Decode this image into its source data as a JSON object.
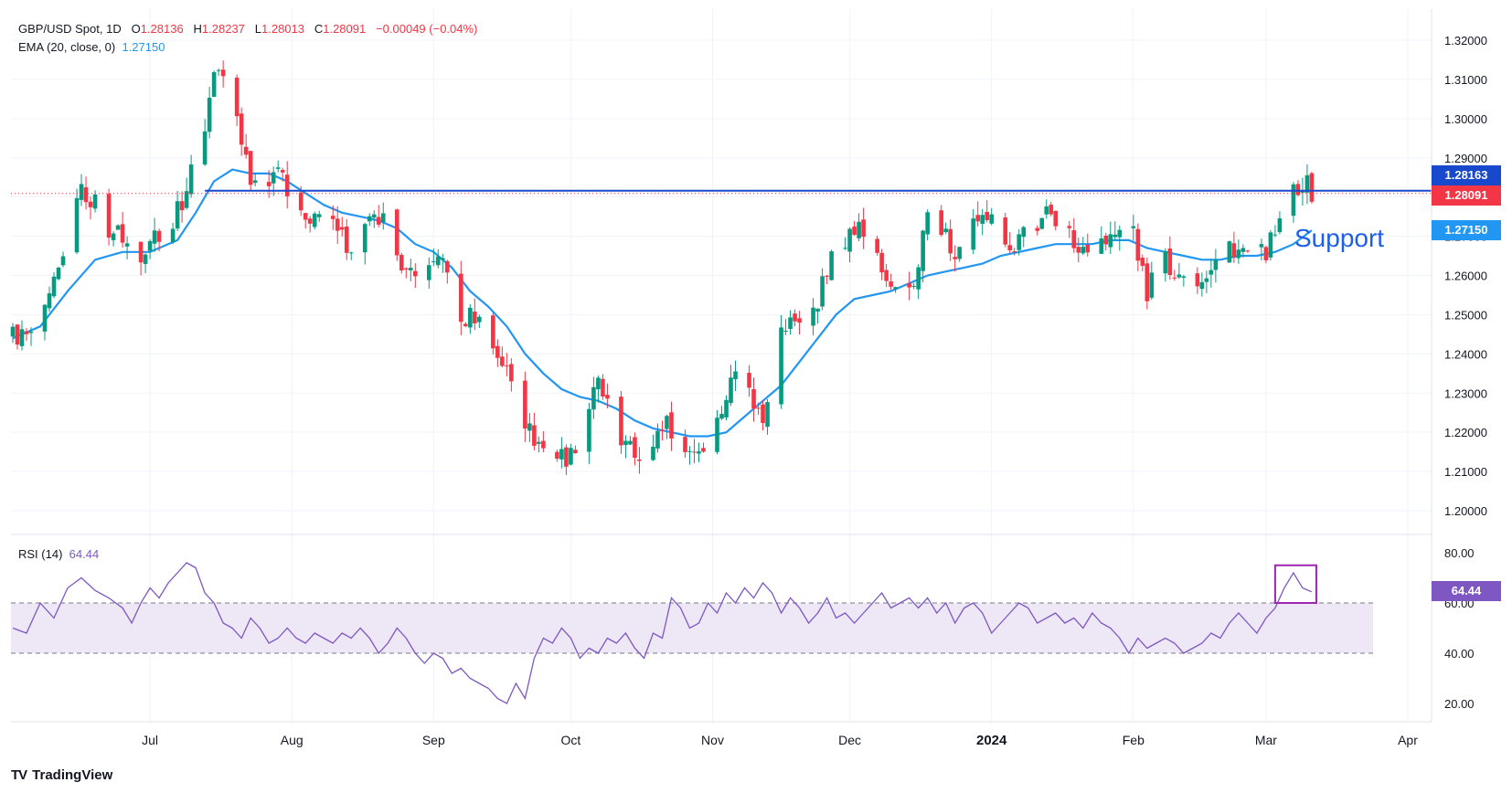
{
  "legend": {
    "symbol": "GBP/USD Spot, 1D",
    "open_label": "O",
    "open": "1.28136",
    "high_label": "H",
    "high": "1.28237",
    "low_label": "L",
    "low": "1.28013",
    "close_label": "C",
    "close": "1.28091",
    "change": "−0.00049 (−0.04%)",
    "ema_label": "EMA (20, close, 0)",
    "ema_value": "1.27150",
    "rsi_label": "RSI (14)",
    "rsi_value": "64.44"
  },
  "price_tags": {
    "resistance": "1.28163",
    "last": "1.28091",
    "ema": "1.27150",
    "rsi": "64.44"
  },
  "annotation": "Support",
  "footer": {
    "brand": "TradingView",
    "logo": "TV"
  },
  "colors": {
    "up": "#089981",
    "down": "#f23645",
    "ema": "#2196f3",
    "rsi": "#7e57c2",
    "level": "#1848cc",
    "box": "#9c27b0",
    "rsi_band": "#ede7f6"
  },
  "chart_data": [
    {
      "type": "candlestick",
      "title": "GBP/USD Spot, 1D",
      "ylim": [
        1.195,
        1.325
      ],
      "y_ticks": [
        "1.32000",
        "1.31000",
        "1.30000",
        "1.29000",
        "1.28000",
        "1.27000",
        "1.26000",
        "1.25000",
        "1.24000",
        "1.23000",
        "1.22000",
        "1.21000",
        "1.20000"
      ],
      "y_tick_values": [
        1.32,
        1.31,
        1.3,
        1.29,
        1.28,
        1.27,
        1.26,
        1.25,
        1.24,
        1.23,
        1.22,
        1.21,
        1.2
      ],
      "x_range_days": [
        0,
        296
      ],
      "x_ticks": [
        {
          "label": "Jul",
          "day": 30
        },
        {
          "label": "Aug",
          "day": 61
        },
        {
          "label": "Sep",
          "day": 92
        },
        {
          "label": "Oct",
          "day": 122
        },
        {
          "label": "Nov",
          "day": 153
        },
        {
          "label": "Dec",
          "day": 183
        },
        {
          "label": "2024",
          "day": 214
        },
        {
          "label": "Feb",
          "day": 245
        },
        {
          "label": "Mar",
          "day": 274
        },
        {
          "label": "Apr",
          "day": 305
        }
      ],
      "resistance_level": 1.2816,
      "last_price": 1.28091,
      "ema_last": 1.2715,
      "close_path": [
        [
          0,
          1.245
        ],
        [
          4,
          1.244
        ],
        [
          7,
          1.25
        ],
        [
          11,
          1.264
        ],
        [
          14,
          1.282
        ],
        [
          17,
          1.28
        ],
        [
          21,
          1.272
        ],
        [
          24,
          1.27
        ],
        [
          27,
          1.264
        ],
        [
          30,
          1.27
        ],
        [
          33,
          1.272
        ],
        [
          36,
          1.276
        ],
        [
          39,
          1.286
        ],
        [
          42,
          1.298
        ],
        [
          44,
          1.312
        ],
        [
          46,
          1.31
        ],
        [
          48,
          1.304
        ],
        [
          50,
          1.296
        ],
        [
          52,
          1.286
        ],
        [
          55,
          1.284
        ],
        [
          58,
          1.288
        ],
        [
          60,
          1.28
        ],
        [
          62,
          1.276
        ],
        [
          65,
          1.272
        ],
        [
          68,
          1.276
        ],
        [
          71,
          1.27
        ],
        [
          74,
          1.268
        ],
        [
          77,
          1.272
        ],
        [
          80,
          1.274
        ],
        [
          83,
          1.272
        ],
        [
          86,
          1.26
        ],
        [
          89,
          1.258
        ],
        [
          92,
          1.265
        ],
        [
          95,
          1.26
        ],
        [
          98,
          1.248
        ],
        [
          101,
          1.25
        ],
        [
          104,
          1.244
        ],
        [
          107,
          1.238
        ],
        [
          110,
          1.23
        ],
        [
          113,
          1.22
        ],
        [
          116,
          1.216
        ],
        [
          119,
          1.214
        ],
        [
          122,
          1.214
        ],
        [
          125,
          1.224
        ],
        [
          128,
          1.232
        ],
        [
          131,
          1.224
        ],
        [
          134,
          1.216
        ],
        [
          137,
          1.214
        ],
        [
          140,
          1.216
        ],
        [
          143,
          1.224
        ],
        [
          146,
          1.214
        ],
        [
          149,
          1.216
        ],
        [
          152,
          1.216
        ],
        [
          155,
          1.226
        ],
        [
          158,
          1.236
        ],
        [
          161,
          1.23
        ],
        [
          164,
          1.223
        ],
        [
          167,
          1.244
        ],
        [
          170,
          1.248
        ],
        [
          173,
          1.25
        ],
        [
          176,
          1.254
        ],
        [
          179,
          1.264
        ],
        [
          182,
          1.27
        ],
        [
          185,
          1.272
        ],
        [
          188,
          1.266
        ],
        [
          191,
          1.258
        ],
        [
          194,
          1.254
        ],
        [
          197,
          1.258
        ],
        [
          200,
          1.276
        ],
        [
          203,
          1.272
        ],
        [
          206,
          1.264
        ],
        [
          209,
          1.27
        ],
        [
          212,
          1.278
        ],
        [
          215,
          1.272
        ],
        [
          218,
          1.266
        ],
        [
          221,
          1.27
        ],
        [
          224,
          1.274
        ],
        [
          227,
          1.276
        ],
        [
          230,
          1.272
        ],
        [
          233,
          1.266
        ],
        [
          236,
          1.27
        ],
        [
          239,
          1.268
        ],
        [
          242,
          1.271
        ],
        [
          245,
          1.27
        ],
        [
          248,
          1.256
        ],
        [
          251,
          1.264
        ],
        [
          254,
          1.262
        ],
        [
          257,
          1.258
        ],
        [
          260,
          1.26
        ],
        [
          263,
          1.264
        ],
        [
          266,
          1.268
        ],
        [
          269,
          1.266
        ],
        [
          272,
          1.264
        ],
        [
          275,
          1.268
        ],
        [
          278,
          1.274
        ],
        [
          280,
          1.282
        ],
        [
          282,
          1.284
        ],
        [
          284,
          1.2812
        ],
        [
          285,
          1.2809
        ]
      ],
      "ema_path": [
        [
          0,
          1.244
        ],
        [
          6,
          1.247
        ],
        [
          12,
          1.256
        ],
        [
          18,
          1.264
        ],
        [
          24,
          1.266
        ],
        [
          30,
          1.266
        ],
        [
          36,
          1.269
        ],
        [
          40,
          1.276
        ],
        [
          44,
          1.284
        ],
        [
          48,
          1.287
        ],
        [
          52,
          1.286
        ],
        [
          56,
          1.286
        ],
        [
          60,
          1.284
        ],
        [
          64,
          1.281
        ],
        [
          68,
          1.278
        ],
        [
          72,
          1.276
        ],
        [
          76,
          1.275
        ],
        [
          80,
          1.274
        ],
        [
          84,
          1.272
        ],
        [
          88,
          1.268
        ],
        [
          92,
          1.266
        ],
        [
          96,
          1.262
        ],
        [
          100,
          1.256
        ],
        [
          104,
          1.252
        ],
        [
          108,
          1.247
        ],
        [
          112,
          1.24
        ],
        [
          116,
          1.235
        ],
        [
          120,
          1.231
        ],
        [
          124,
          1.229
        ],
        [
          128,
          1.228
        ],
        [
          132,
          1.226
        ],
        [
          136,
          1.223
        ],
        [
          140,
          1.221
        ],
        [
          144,
          1.22
        ],
        [
          148,
          1.219
        ],
        [
          152,
          1.219
        ],
        [
          156,
          1.22
        ],
        [
          160,
          1.224
        ],
        [
          164,
          1.228
        ],
        [
          168,
          1.232
        ],
        [
          172,
          1.238
        ],
        [
          176,
          1.244
        ],
        [
          180,
          1.25
        ],
        [
          184,
          1.254
        ],
        [
          188,
          1.255
        ],
        [
          192,
          1.256
        ],
        [
          196,
          1.258
        ],
        [
          200,
          1.26
        ],
        [
          204,
          1.261
        ],
        [
          208,
          1.262
        ],
        [
          212,
          1.263
        ],
        [
          216,
          1.265
        ],
        [
          220,
          1.266
        ],
        [
          224,
          1.267
        ],
        [
          228,
          1.268
        ],
        [
          232,
          1.268
        ],
        [
          236,
          1.268
        ],
        [
          240,
          1.269
        ],
        [
          244,
          1.269
        ],
        [
          248,
          1.267
        ],
        [
          252,
          1.266
        ],
        [
          256,
          1.265
        ],
        [
          260,
          1.264
        ],
        [
          264,
          1.264
        ],
        [
          268,
          1.265
        ],
        [
          272,
          1.265
        ],
        [
          276,
          1.266
        ],
        [
          280,
          1.268
        ],
        [
          284,
          1.2715
        ]
      ]
    },
    {
      "type": "line",
      "title": "RSI (14)",
      "ylim": [
        15,
        85
      ],
      "y_ticks": [
        "80.00",
        "60.00",
        "40.00",
        "20.00"
      ],
      "y_tick_values": [
        80,
        60,
        40,
        20
      ],
      "band": [
        40,
        60
      ],
      "last_value": 64.44,
      "highlight_days": [
        276,
        285
      ],
      "values_path": [
        [
          0,
          50
        ],
        [
          3,
          48
        ],
        [
          6,
          60
        ],
        [
          9,
          54
        ],
        [
          12,
          66
        ],
        [
          15,
          70
        ],
        [
          18,
          65
        ],
        [
          21,
          62
        ],
        [
          24,
          58
        ],
        [
          26,
          52
        ],
        [
          28,
          60
        ],
        [
          30,
          66
        ],
        [
          32,
          62
        ],
        [
          34,
          68
        ],
        [
          36,
          72
        ],
        [
          38,
          76
        ],
        [
          40,
          74
        ],
        [
          42,
          64
        ],
        [
          44,
          60
        ],
        [
          46,
          52
        ],
        [
          48,
          50
        ],
        [
          50,
          46
        ],
        [
          52,
          54
        ],
        [
          54,
          50
        ],
        [
          56,
          44
        ],
        [
          58,
          46
        ],
        [
          60,
          50
        ],
        [
          62,
          46
        ],
        [
          64,
          44
        ],
        [
          66,
          48
        ],
        [
          68,
          46
        ],
        [
          70,
          44
        ],
        [
          72,
          48
        ],
        [
          74,
          46
        ],
        [
          76,
          50
        ],
        [
          78,
          46
        ],
        [
          80,
          40
        ],
        [
          82,
          44
        ],
        [
          84,
          50
        ],
        [
          86,
          46
        ],
        [
          88,
          40
        ],
        [
          90,
          36
        ],
        [
          92,
          40
        ],
        [
          94,
          38
        ],
        [
          96,
          32
        ],
        [
          98,
          34
        ],
        [
          100,
          30
        ],
        [
          102,
          28
        ],
        [
          104,
          26
        ],
        [
          106,
          22
        ],
        [
          108,
          20
        ],
        [
          110,
          28
        ],
        [
          112,
          22
        ],
        [
          114,
          38
        ],
        [
          116,
          46
        ],
        [
          118,
          44
        ],
        [
          120,
          50
        ],
        [
          122,
          46
        ],
        [
          124,
          38
        ],
        [
          126,
          42
        ],
        [
          128,
          40
        ],
        [
          130,
          46
        ],
        [
          132,
          44
        ],
        [
          134,
          48
        ],
        [
          136,
          42
        ],
        [
          138,
          38
        ],
        [
          140,
          48
        ],
        [
          142,
          46
        ],
        [
          144,
          62
        ],
        [
          146,
          58
        ],
        [
          148,
          50
        ],
        [
          150,
          52
        ],
        [
          152,
          60
        ],
        [
          154,
          56
        ],
        [
          156,
          64
        ],
        [
          158,
          60
        ],
        [
          160,
          66
        ],
        [
          162,
          62
        ],
        [
          164,
          68
        ],
        [
          166,
          64
        ],
        [
          168,
          56
        ],
        [
          170,
          62
        ],
        [
          172,
          58
        ],
        [
          174,
          52
        ],
        [
          176,
          56
        ],
        [
          178,
          62
        ],
        [
          180,
          54
        ],
        [
          182,
          56
        ],
        [
          184,
          52
        ],
        [
          186,
          56
        ],
        [
          188,
          60
        ],
        [
          190,
          64
        ],
        [
          192,
          58
        ],
        [
          194,
          60
        ],
        [
          196,
          62
        ],
        [
          198,
          58
        ],
        [
          200,
          62
        ],
        [
          202,
          56
        ],
        [
          204,
          60
        ],
        [
          206,
          52
        ],
        [
          208,
          58
        ],
        [
          210,
          60
        ],
        [
          212,
          56
        ],
        [
          214,
          48
        ],
        [
          216,
          52
        ],
        [
          218,
          56
        ],
        [
          220,
          60
        ],
        [
          222,
          58
        ],
        [
          224,
          52
        ],
        [
          226,
          54
        ],
        [
          228,
          56
        ],
        [
          230,
          52
        ],
        [
          232,
          54
        ],
        [
          234,
          50
        ],
        [
          236,
          56
        ],
        [
          238,
          52
        ],
        [
          240,
          50
        ],
        [
          242,
          46
        ],
        [
          244,
          40
        ],
        [
          246,
          46
        ],
        [
          248,
          42
        ],
        [
          250,
          44
        ],
        [
          252,
          46
        ],
        [
          254,
          44
        ],
        [
          256,
          40
        ],
        [
          258,
          42
        ],
        [
          260,
          44
        ],
        [
          262,
          48
        ],
        [
          264,
          46
        ],
        [
          266,
          52
        ],
        [
          268,
          56
        ],
        [
          270,
          52
        ],
        [
          272,
          48
        ],
        [
          274,
          54
        ],
        [
          276,
          58
        ],
        [
          278,
          66
        ],
        [
          280,
          72
        ],
        [
          282,
          66
        ],
        [
          284,
          64.44
        ]
      ]
    }
  ]
}
